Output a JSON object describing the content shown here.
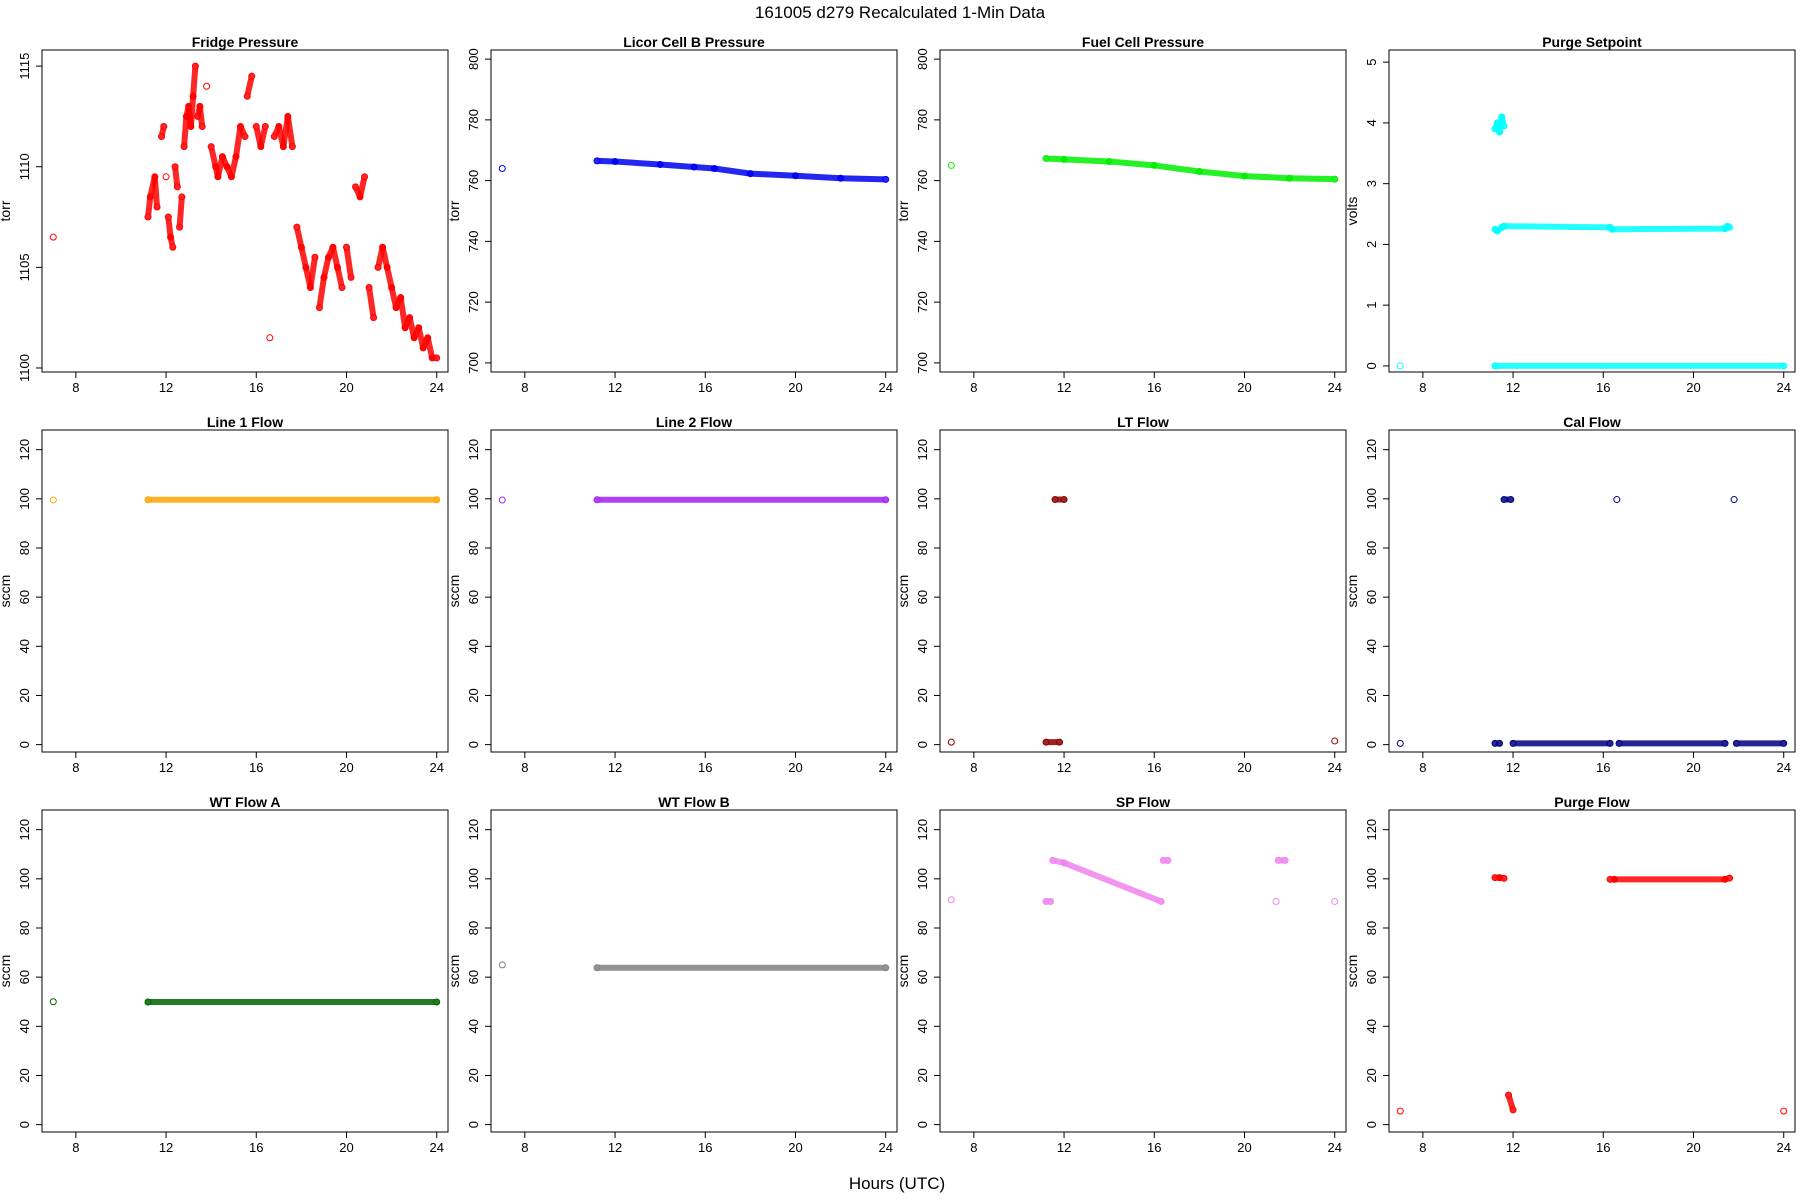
{
  "figure": {
    "title": "161005   d279   Recalculated 1-Min Data",
    "xlabel": "Hours (UTC)"
  },
  "chart_data": [
    {
      "type": "scatter",
      "title": "Fridge Pressure",
      "ylabel": "torr",
      "xlim": [
        6.5,
        24.5
      ],
      "ylim": [
        1099.8,
        1115.8
      ],
      "xticks": [
        8,
        12,
        16,
        20,
        24
      ],
      "yticks": [
        1100,
        1105,
        1110,
        1115
      ],
      "color": "#ff0000",
      "series": [
        {
          "x": [
            7.0,
            11.2,
            11.3,
            11.5,
            11.6,
            11.8,
            11.9,
            12.0,
            12.1,
            12.2,
            12.3,
            12.4,
            12.5,
            12.6,
            12.7,
            12.8,
            12.9,
            13.0,
            13.1,
            13.2,
            13.3,
            13.4,
            13.5,
            13.6,
            13.8,
            14.0,
            14.2,
            14.3,
            14.5,
            14.7,
            14.9,
            15.1,
            15.3,
            15.5,
            15.6,
            15.8,
            16.0,
            16.2,
            16.4,
            16.6,
            16.8,
            17.0,
            17.2,
            17.4,
            17.6,
            17.8,
            18.0,
            18.2,
            18.4,
            18.6,
            18.8,
            19.0,
            19.2,
            19.4,
            19.6,
            19.8,
            20.0,
            20.2,
            20.4,
            20.6,
            20.8,
            21.0,
            21.2,
            21.4,
            21.6,
            21.8,
            22.0,
            22.2,
            22.4,
            22.6,
            22.8,
            23.0,
            23.2,
            23.4,
            23.6,
            23.8,
            24.0
          ],
          "y": [
            1106.5,
            1107.5,
            1108.5,
            1109.5,
            1108.0,
            1111.5,
            1112.0,
            1109.5,
            1107.5,
            1106.5,
            1106.0,
            1110.0,
            1109.0,
            1107.0,
            1108.5,
            1111.0,
            1112.5,
            1113.0,
            1112.0,
            1113.5,
            1115.0,
            1112.5,
            1113.0,
            1112.0,
            1114.0,
            1111.0,
            1110.0,
            1109.5,
            1110.5,
            1110.0,
            1109.5,
            1110.5,
            1112.0,
            1111.5,
            1113.5,
            1114.5,
            1112.0,
            1111.0,
            1112.0,
            1101.5,
            1111.5,
            1112.0,
            1111.0,
            1112.5,
            1111.0,
            1107.0,
            1106.0,
            1105.0,
            1104.0,
            1105.5,
            1103.0,
            1104.5,
            1105.5,
            1106.0,
            1105.0,
            1104.0,
            1106.0,
            1104.5,
            1109.0,
            1108.5,
            1109.5,
            1104.0,
            1102.5,
            1105.0,
            1106.0,
            1105.0,
            1104.0,
            1103.0,
            1103.5,
            1102.0,
            1102.5,
            1101.5,
            1102.0,
            1101.0,
            1101.5,
            1100.5,
            1100.5
          ]
        }
      ]
    },
    {
      "type": "scatter",
      "title": "Licor Cell B Pressure",
      "ylabel": "torr",
      "xlim": [
        6.5,
        24.5
      ],
      "ylim": [
        697,
        803
      ],
      "xticks": [
        8,
        12,
        16,
        20,
        24
      ],
      "yticks": [
        700,
        720,
        740,
        760,
        780,
        800
      ],
      "color": "#0000ee",
      "series": [
        {
          "x": [
            7.0,
            11.2,
            12.0,
            14.0,
            15.5,
            16.4,
            18.0,
            20.0,
            22.0,
            24.0
          ],
          "y": [
            764,
            766.5,
            766.3,
            765.3,
            764.5,
            764.0,
            762.3,
            761.6,
            760.8,
            760.4
          ]
        }
      ]
    },
    {
      "type": "scatter",
      "title": "Fuel Cell Pressure",
      "ylabel": "torr",
      "xlim": [
        6.5,
        24.5
      ],
      "ylim": [
        697,
        803
      ],
      "xticks": [
        8,
        12,
        16,
        20,
        24
      ],
      "yticks": [
        700,
        720,
        740,
        760,
        780,
        800
      ],
      "color": "#00ee00",
      "series": [
        {
          "x": [
            7.0,
            11.2,
            12.0,
            14.0,
            16.0,
            18.0,
            20.0,
            22.0,
            24.0
          ],
          "y": [
            765,
            767.3,
            767.0,
            766.3,
            765.0,
            763.0,
            761.5,
            760.8,
            760.5
          ]
        }
      ]
    },
    {
      "type": "scatter",
      "title": "Purge Setpoint",
      "ylabel": "volts",
      "xlim": [
        6.5,
        24.5
      ],
      "ylim": [
        -0.1,
        5.2
      ],
      "xticks": [
        8,
        12,
        16,
        20,
        24
      ],
      "yticks": [
        0,
        1,
        2,
        3,
        4,
        5
      ],
      "color": "#00ffff",
      "series": [
        {
          "x": [
            7.0,
            11.2,
            11.3,
            11.4,
            11.5,
            11.6,
            11.2,
            11.3,
            11.5,
            11.6,
            16.3,
            16.4,
            21.4,
            21.5,
            21.6
          ],
          "y": [
            0,
            3.9,
            4.0,
            3.85,
            4.1,
            3.95,
            2.25,
            2.22,
            2.28,
            2.3,
            2.28,
            2.25,
            2.26,
            2.3,
            2.28
          ]
        },
        {
          "x": [
            11.2,
            24.0
          ],
          "y": [
            0,
            0
          ]
        }
      ]
    },
    {
      "type": "scatter",
      "title": "Line 1 Flow",
      "ylabel": "sccm",
      "xlim": [
        6.5,
        24.5
      ],
      "ylim": [
        -3,
        128
      ],
      "xticks": [
        8,
        12,
        16,
        20,
        24
      ],
      "yticks": [
        0,
        20,
        40,
        60,
        80,
        100,
        120
      ],
      "color": "#ffa500",
      "series": [
        {
          "x": [
            7.0,
            11.2,
            24.0
          ],
          "y": [
            99.5,
            99.6,
            99.6
          ]
        }
      ]
    },
    {
      "type": "scatter",
      "title": "Line 2 Flow",
      "ylabel": "sccm",
      "xlim": [
        6.5,
        24.5
      ],
      "ylim": [
        -3,
        128
      ],
      "xticks": [
        8,
        12,
        16,
        20,
        24
      ],
      "yticks": [
        0,
        20,
        40,
        60,
        80,
        100,
        120
      ],
      "color": "#a020f0",
      "series": [
        {
          "x": [
            7.0,
            11.2,
            24.0
          ],
          "y": [
            99.5,
            99.6,
            99.6
          ]
        }
      ]
    },
    {
      "type": "scatter",
      "title": "LT Flow",
      "ylabel": "sccm",
      "xlim": [
        6.5,
        24.5
      ],
      "ylim": [
        -3,
        128
      ],
      "xticks": [
        8,
        12,
        16,
        20,
        24
      ],
      "yticks": [
        0,
        20,
        40,
        60,
        80,
        100,
        120
      ],
      "color": "#8b0000",
      "series": [
        {
          "x": [
            7.0,
            11.2,
            11.8,
            11.6,
            12.0,
            24.0
          ],
          "y": [
            1,
            1,
            1,
            99.7,
            99.7,
            1.5
          ]
        }
      ]
    },
    {
      "type": "scatter",
      "title": "Cal Flow",
      "ylabel": "sccm",
      "xlim": [
        6.5,
        24.5
      ],
      "ylim": [
        -3,
        128
      ],
      "xticks": [
        8,
        12,
        16,
        20,
        24
      ],
      "yticks": [
        0,
        20,
        40,
        60,
        80,
        100,
        120
      ],
      "color": "#000080",
      "series": [
        {
          "x": [
            7.0,
            11.2,
            11.4,
            11.6,
            11.9,
            12.0,
            16.3,
            16.6,
            16.7,
            21.4,
            21.8,
            21.9,
            24.0
          ],
          "y": [
            0.5,
            0.5,
            0.5,
            99.7,
            99.7,
            0.5,
            0.5,
            99.7,
            0.5,
            0.5,
            99.7,
            0.5,
            0.5
          ]
        }
      ]
    },
    {
      "type": "scatter",
      "title": "WT Flow A",
      "ylabel": "sccm",
      "xlim": [
        6.5,
        24.5
      ],
      "ylim": [
        -3,
        128
      ],
      "xticks": [
        8,
        12,
        16,
        20,
        24
      ],
      "yticks": [
        0,
        20,
        40,
        60,
        80,
        100,
        120
      ],
      "color": "#006400",
      "series": [
        {
          "x": [
            7.0,
            11.2,
            24.0
          ],
          "y": [
            50,
            49.9,
            49.9
          ]
        }
      ]
    },
    {
      "type": "scatter",
      "title": "WT Flow B",
      "ylabel": "sccm",
      "xlim": [
        6.5,
        24.5
      ],
      "ylim": [
        -3,
        128
      ],
      "xticks": [
        8,
        12,
        16,
        20,
        24
      ],
      "yticks": [
        0,
        20,
        40,
        60,
        80,
        100,
        120
      ],
      "color": "#808080",
      "series": [
        {
          "x": [
            7.0,
            11.2,
            24.0
          ],
          "y": [
            65,
            63.8,
            63.8
          ]
        }
      ]
    },
    {
      "type": "scatter",
      "title": "SP Flow",
      "ylabel": "sccm",
      "xlim": [
        6.5,
        24.5
      ],
      "ylim": [
        -3,
        128
      ],
      "xticks": [
        8,
        12,
        16,
        20,
        24
      ],
      "yticks": [
        0,
        20,
        40,
        60,
        80,
        100,
        120
      ],
      "color": "#ee82ee",
      "series": [
        {
          "x": [
            7.0,
            11.2,
            11.4,
            11.5,
            12.0,
            16.3,
            16.4,
            16.6,
            21.4,
            21.5,
            21.8,
            24.0
          ],
          "y": [
            91.5,
            90.8,
            90.8,
            107.5,
            106.5,
            90.8,
            107.5,
            107.5,
            90.8,
            107.5,
            107.5,
            90.8
          ]
        }
      ]
    },
    {
      "type": "scatter",
      "title": "Purge Flow",
      "ylabel": "sccm",
      "xlim": [
        6.5,
        24.5
      ],
      "ylim": [
        -3,
        128
      ],
      "xticks": [
        8,
        12,
        16,
        20,
        24
      ],
      "yticks": [
        0,
        20,
        40,
        60,
        80,
        100,
        120
      ],
      "color": "#ff0000",
      "series": [
        {
          "x": [
            7.0,
            11.2,
            11.4,
            11.6,
            11.8,
            12.0,
            16.3,
            16.5,
            21.4,
            21.6,
            24.0
          ],
          "y": [
            5.5,
            100.5,
            100.5,
            100.2,
            12.0,
            6.0,
            99.8,
            99.8,
            99.8,
            100.3,
            5.5
          ]
        }
      ]
    }
  ]
}
